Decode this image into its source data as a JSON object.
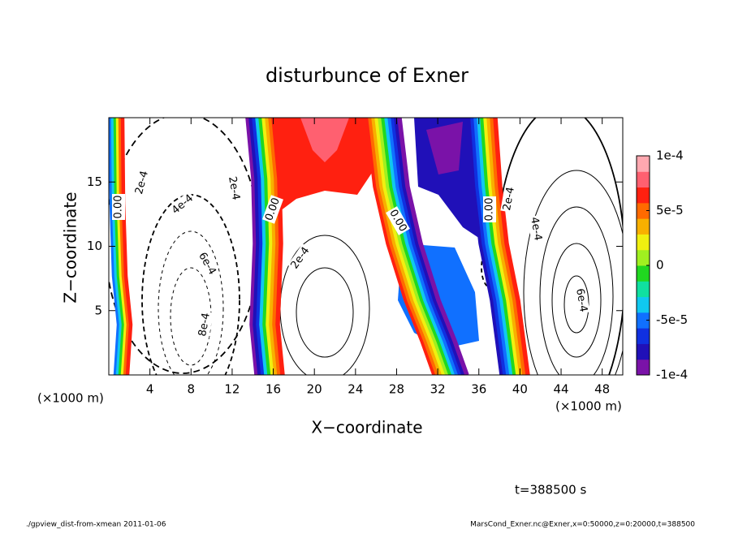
{
  "chart_data": {
    "type": "contour",
    "title": "disturbunce of Exner",
    "xlabel": "X−coordinate",
    "ylabel": "Z−coordinate",
    "x_unit_left": "(×1000 m)",
    "x_unit_right": "(×1000 m)",
    "xlim": [
      0,
      50
    ],
    "xticks": [
      4,
      8,
      12,
      16,
      20,
      24,
      28,
      32,
      36,
      40,
      44,
      48
    ],
    "ylim": [
      0,
      20
    ],
    "yticks": [
      5,
      10,
      15
    ],
    "colorbar": {
      "lim": [
        -0.0001,
        0.0001
      ],
      "ticks": [
        {
          "value": -0.0001,
          "label": "-1e-4"
        },
        {
          "value": -5e-05,
          "label": "-5e-5"
        },
        0,
        {
          "value": 5e-05,
          "label": "5e-5"
        },
        {
          "value": 0.0001,
          "label": "1e-4"
        }
      ],
      "colors": [
        "#7a12a8",
        "#2010b8",
        "#1030e0",
        "#1070ff",
        "#10c8f0",
        "#10e0a0",
        "#20d820",
        "#a0f020",
        "#f0f010",
        "#f8b000",
        "#ff6a00",
        "#ff2010",
        "#ff6070",
        "#ffa8b0"
      ]
    },
    "contour_labels": [
      "0.00",
      "2e-4",
      "4e-4",
      "2e-4",
      "6e-4",
      "8e-4",
      "0.00",
      "2e-4",
      "0.00",
      "0.00",
      "2e-4",
      "4e-4",
      "6e-4"
    ],
    "time_label": "t=388500 s"
  },
  "footer": {
    "left": "./gpview_dist-from-xmean  2011-01-06",
    "right": "MarsCond_Exner.nc@Exner,x=0:50000,z=0:20000,t=388500"
  }
}
